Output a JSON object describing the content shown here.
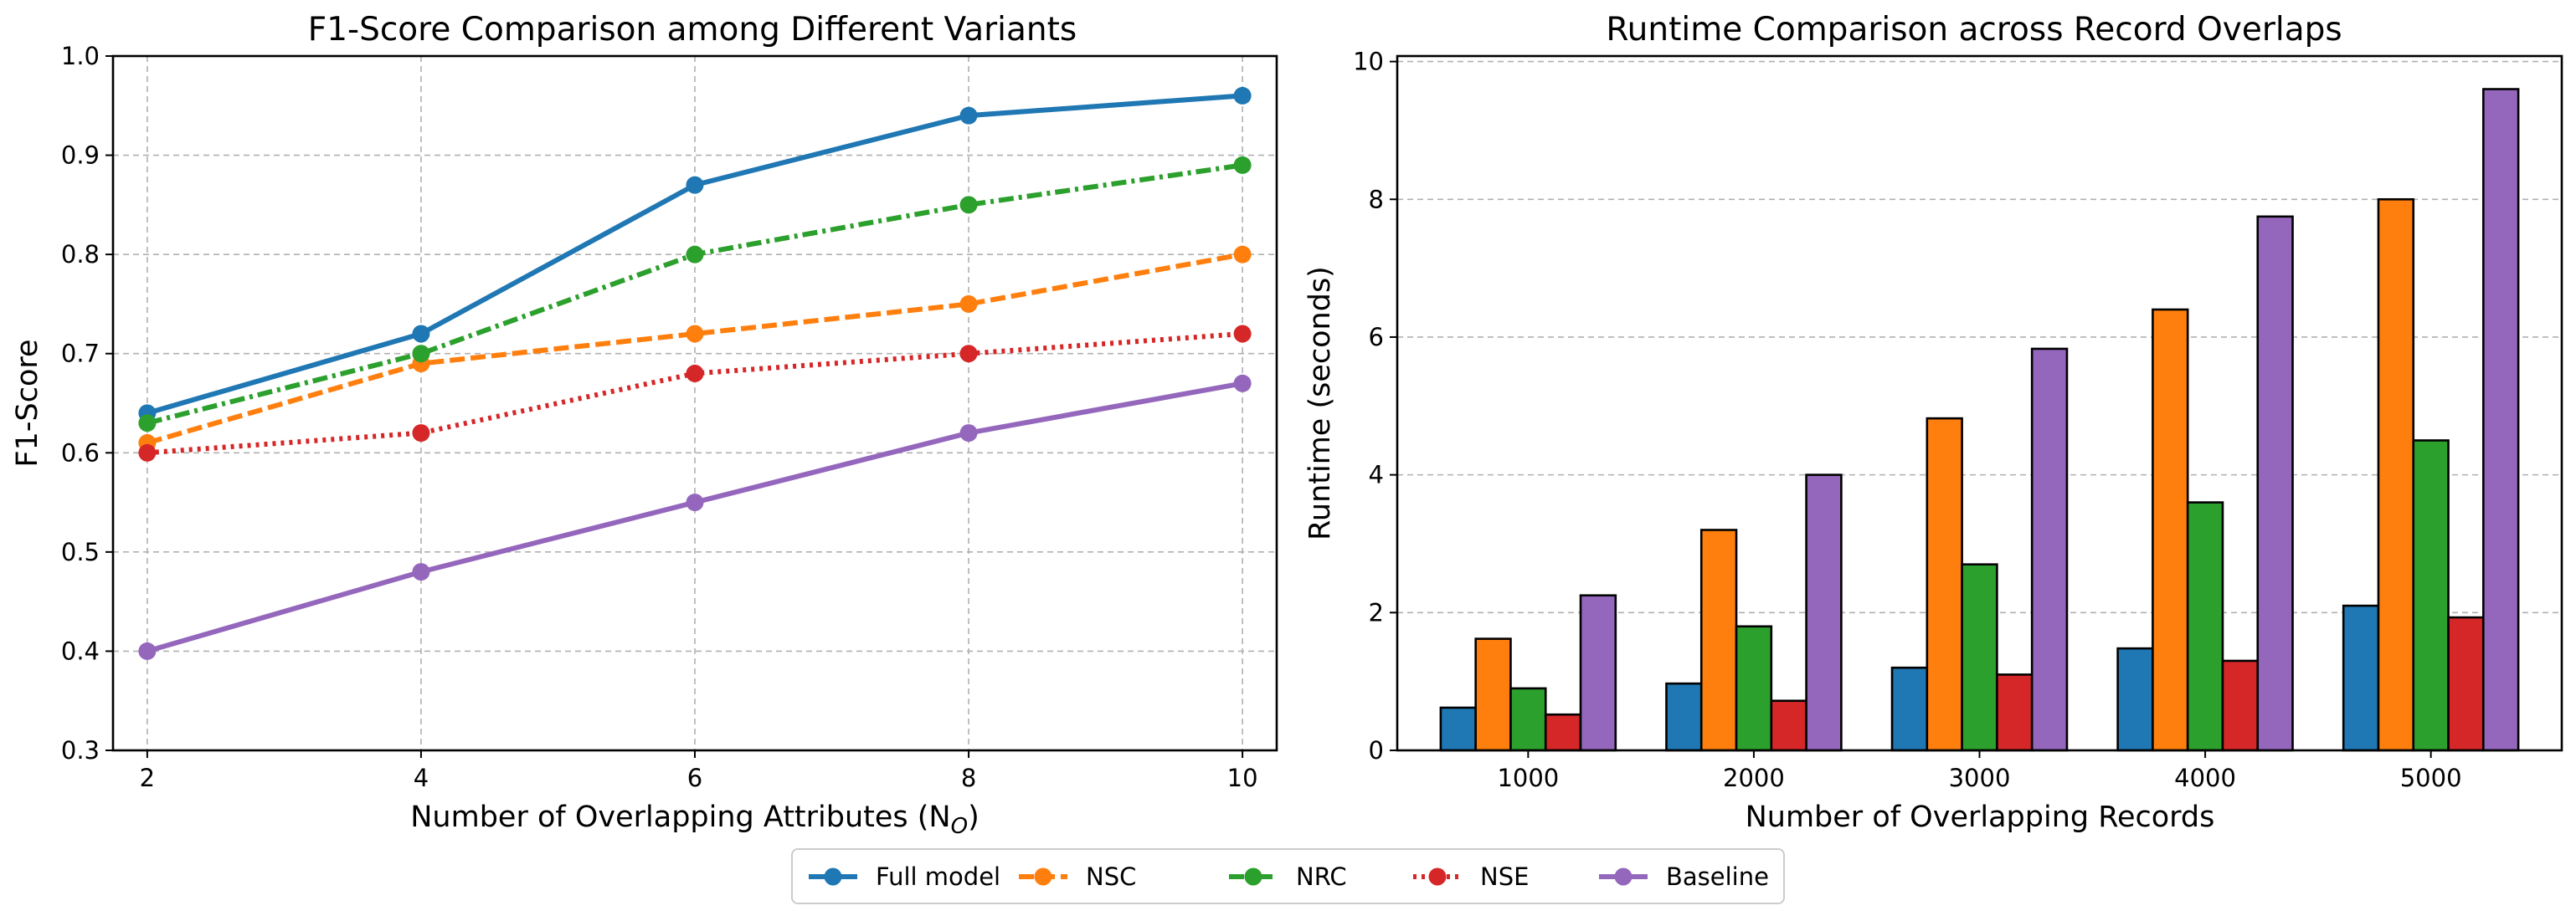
{
  "chart_data": [
    {
      "type": "line",
      "title": "F1-Score Comparison among Different Variants",
      "xlabel": "Number of Overlapping Attributes (N",
      "xlabel_sub": "O",
      "xlabel_suffix": ")",
      "ylabel": "F1-Score",
      "x": [
        2,
        4,
        6,
        8,
        10
      ],
      "xlim": [
        1.75,
        10.25
      ],
      "ylim": [
        0.3,
        1.0
      ],
      "yticks": [
        "0.3",
        "0.4",
        "0.5",
        "0.6",
        "0.7",
        "0.8",
        "0.9",
        "1.0"
      ],
      "xticks": [
        "2",
        "4",
        "6",
        "8",
        "10"
      ],
      "grid": true,
      "series": [
        {
          "name": "Full model",
          "values": [
            0.64,
            0.72,
            0.87,
            0.94,
            0.96
          ],
          "color": "#1f77b4",
          "dash": "solid"
        },
        {
          "name": "NSC",
          "values": [
            0.61,
            0.69,
            0.72,
            0.75,
            0.8
          ],
          "color": "#ff7f0e",
          "dash": "dashed"
        },
        {
          "name": "NRC",
          "values": [
            0.63,
            0.7,
            0.8,
            0.85,
            0.89
          ],
          "color": "#2ca02c",
          "dash": "dashdot"
        },
        {
          "name": "NSE",
          "values": [
            0.6,
            0.62,
            0.68,
            0.7,
            0.72
          ],
          "color": "#d62728",
          "dash": "dotted"
        },
        {
          "name": "Baseline",
          "values": [
            0.4,
            0.48,
            0.55,
            0.62,
            0.67
          ],
          "color": "#9467bd",
          "dash": "solid"
        }
      ]
    },
    {
      "type": "bar",
      "title": "Runtime Comparison across Record Overlaps",
      "xlabel": "Number of Overlapping Records",
      "ylabel": "Runtime (seconds)",
      "categories": [
        "1000",
        "2000",
        "3000",
        "4000",
        "5000"
      ],
      "ylim": [
        0,
        10.08
      ],
      "yticks": [
        "0",
        "2",
        "4",
        "6",
        "8",
        "10"
      ],
      "grid": true,
      "series": [
        {
          "name": "Full model",
          "values": [
            0.62,
            0.97,
            1.2,
            1.48,
            2.1
          ],
          "color": "#1f77b4"
        },
        {
          "name": "NSC",
          "values": [
            1.62,
            3.2,
            4.82,
            6.4,
            8.0
          ],
          "color": "#ff7f0e"
        },
        {
          "name": "NRC",
          "values": [
            0.9,
            1.8,
            2.7,
            3.6,
            4.5
          ],
          "color": "#2ca02c"
        },
        {
          "name": "NSE",
          "values": [
            0.52,
            0.72,
            1.1,
            1.3,
            1.93
          ],
          "color": "#d62728"
        },
        {
          "name": "Baseline",
          "values": [
            2.25,
            4.0,
            5.83,
            7.75,
            9.6
          ],
          "color": "#9467bd"
        }
      ]
    }
  ],
  "legend": {
    "placement": "bottom-center",
    "entries": [
      {
        "label": "Full model",
        "color": "#1f77b4",
        "dash": "solid"
      },
      {
        "label": "NSC",
        "color": "#ff7f0e",
        "dash": "dashed"
      },
      {
        "label": "NRC",
        "color": "#2ca02c",
        "dash": "dashdot"
      },
      {
        "label": "NSE",
        "color": "#d62728",
        "dash": "dotted"
      },
      {
        "label": "Baseline",
        "color": "#9467bd",
        "dash": "solid"
      }
    ]
  }
}
